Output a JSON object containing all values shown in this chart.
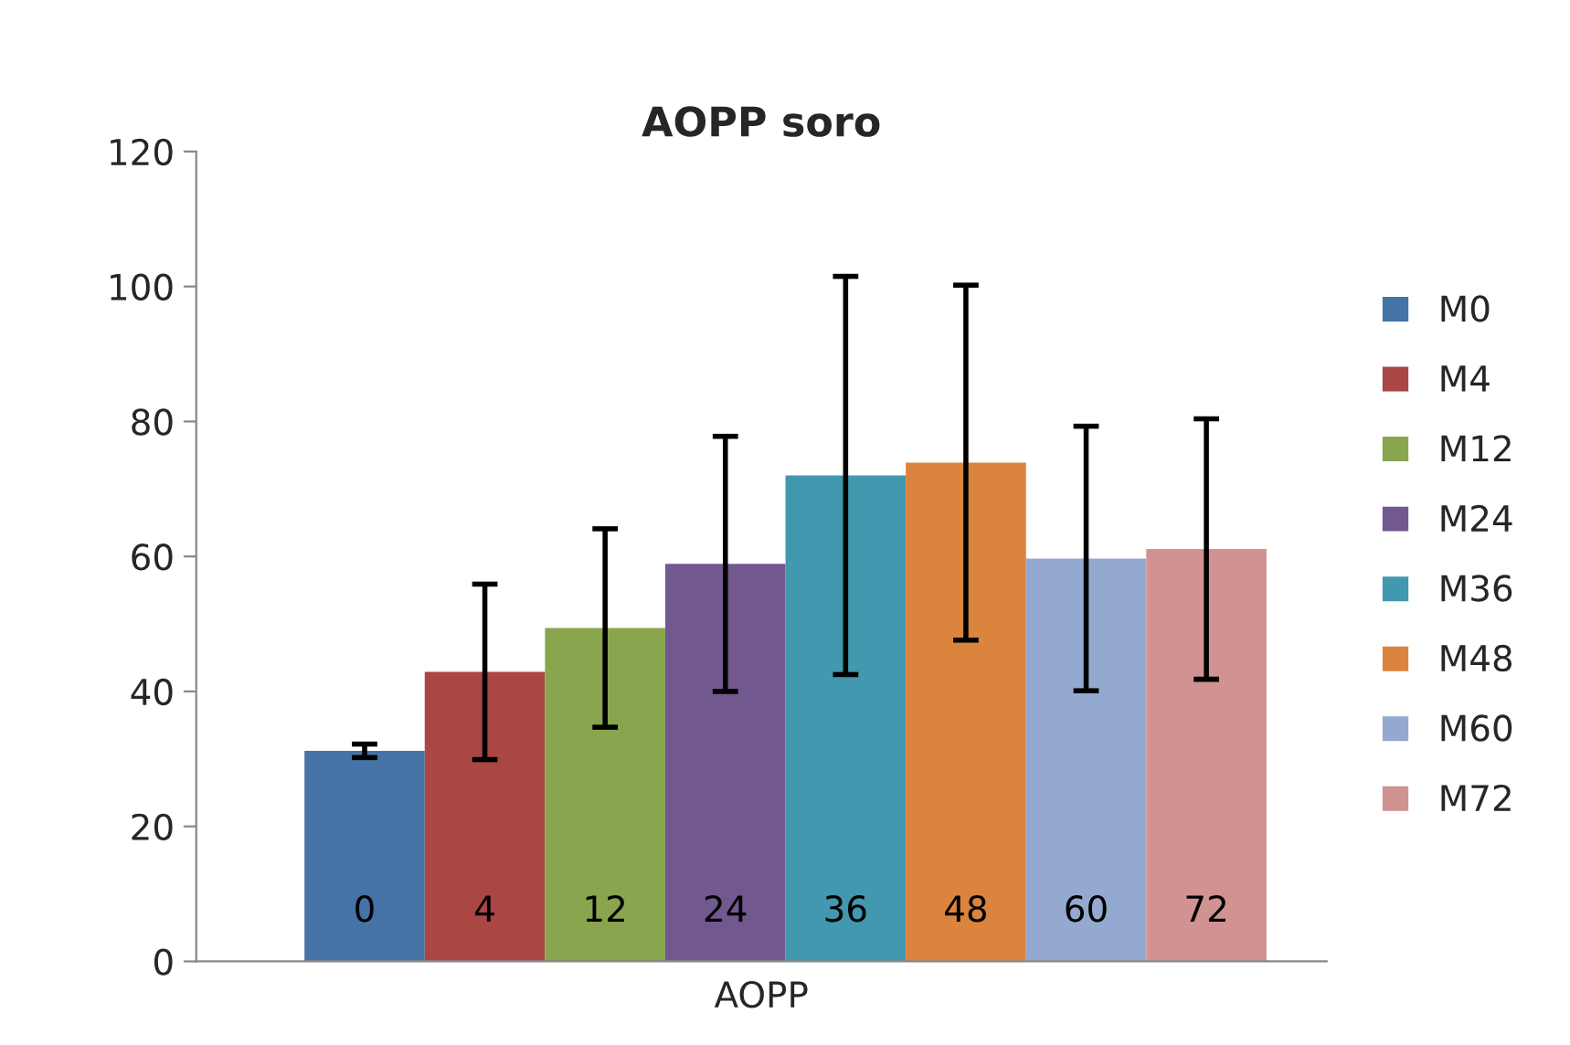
{
  "chart_data": {
    "type": "bar",
    "title": "AOPP soro",
    "xlabel": "AOPP",
    "categories": [
      "0",
      "4",
      "12",
      "24",
      "36",
      "48",
      "60",
      "72"
    ],
    "series": [
      {
        "name": "M0",
        "color": "#4573a7",
        "values": [
          31.2,
          null,
          null,
          null,
          null,
          null,
          null,
          null
        ],
        "errors": [
          1,
          null,
          null,
          null,
          null,
          null,
          null,
          null
        ]
      },
      {
        "name": "M4",
        "color": "#aa4644",
        "values": [
          null,
          42.9,
          null,
          null,
          null,
          null,
          null,
          null
        ],
        "errors": [
          null,
          13,
          null,
          null,
          null,
          null,
          null,
          null
        ]
      },
      {
        "name": "M12",
        "color": "#89a54e",
        "values": [
          null,
          null,
          49.4,
          null,
          null,
          null,
          null,
          null
        ],
        "errors": [
          null,
          null,
          14.7,
          null,
          null,
          null,
          null,
          null
        ]
      },
      {
        "name": "M24",
        "color": "#71588f",
        "values": [
          null,
          null,
          null,
          58.9,
          null,
          null,
          null,
          null
        ],
        "errors": [
          null,
          null,
          null,
          18.9,
          null,
          null,
          null,
          null
        ]
      },
      {
        "name": "M36",
        "color": "#4198af",
        "values": [
          null,
          null,
          null,
          null,
          72.0,
          null,
          null,
          null
        ],
        "errors": [
          null,
          null,
          null,
          null,
          29.5,
          null,
          null,
          null
        ]
      },
      {
        "name": "M48",
        "color": "#db843d",
        "values": [
          null,
          null,
          null,
          null,
          null,
          73.9,
          null,
          null
        ],
        "errors": [
          null,
          null,
          null,
          null,
          null,
          26.3,
          null,
          null
        ]
      },
      {
        "name": "M60",
        "color": "#93a9cf",
        "values": [
          null,
          null,
          null,
          null,
          null,
          null,
          59.7,
          null
        ],
        "errors": [
          null,
          null,
          null,
          null,
          null,
          null,
          19.6,
          null
        ]
      },
      {
        "name": "M72",
        "color": "#d19392",
        "values": [
          null,
          null,
          null,
          null,
          null,
          null,
          null,
          61.1
        ],
        "errors": [
          null,
          null,
          null,
          null,
          null,
          null,
          null,
          19.3
        ]
      }
    ],
    "ylim": [
      0,
      120
    ],
    "yticks": [
      0,
      20,
      40,
      60,
      80,
      100,
      120
    ],
    "grid": false,
    "legend": "right"
  }
}
